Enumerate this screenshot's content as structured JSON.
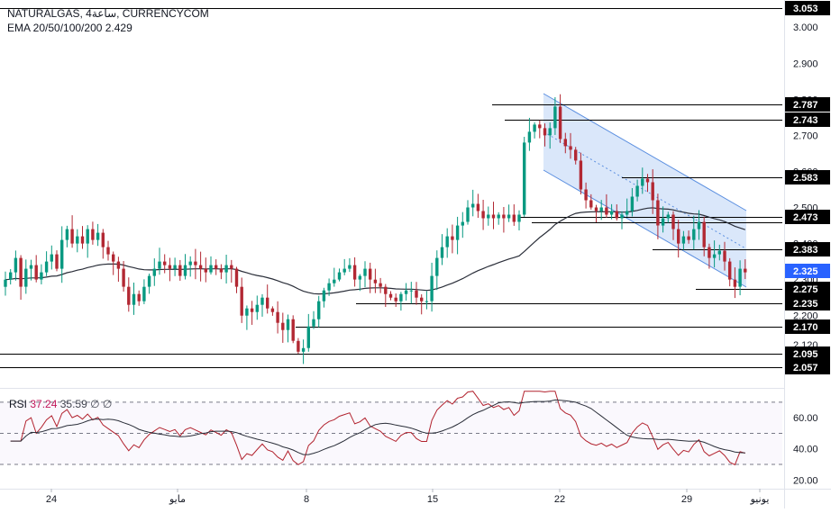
{
  "header": {
    "symbol_line": "NATURALGAS, 4ساعة, CURRENCYCOM",
    "ema_line": "EMA 20/50/100/200  2.429"
  },
  "rsi_header": {
    "label": "RSI",
    "value1": "37.24",
    "value2": "35.59",
    "value3": "∅ ∅"
  },
  "colors": {
    "up": "#089981",
    "down": "#f23645",
    "down_body": "#b22833",
    "ema": "#2a2e39",
    "channel_fill": "#bbd3f6",
    "channel_line": "#5b8fe0",
    "level_line": "#000000",
    "rsi_line": "#b2222e",
    "rsi_ma": "#2a2e39",
    "price_badge": "#2962ff",
    "label_bg": "#000000"
  },
  "price_axis": {
    "ticks": [
      "3.000",
      "2.900",
      "2.800",
      "2.700",
      "2.600",
      "2.500",
      "2.400",
      "2.300",
      "2.200",
      "2.120"
    ],
    "level_labels": [
      "3.053",
      "2.787",
      "2.743",
      "2.583",
      "2.473",
      "2.383",
      "2.275",
      "2.235",
      "2.170",
      "2.095",
      "2.057"
    ],
    "current_price": "2.325"
  },
  "rsi_axis": {
    "ticks": [
      "60.00",
      "40.00",
      "20.00"
    ]
  },
  "time_axis": {
    "labels": [
      "24",
      "مايو",
      "8",
      "15",
      "22",
      "29",
      "يونيو"
    ]
  },
  "chart_data": {
    "type": "candlestick",
    "title": "NATURALGAS, 4ساعة, CURRENCYCOM",
    "x_labels": [
      "24",
      "مايو",
      "8",
      "15",
      "22",
      "29",
      "يونيو"
    ],
    "price_range": [
      2.03,
      3.06
    ],
    "ema_label": "EMA 20/50/100/200",
    "ema_value": 2.429,
    "current_price": 2.325,
    "horizontal_levels": [
      3.053,
      2.787,
      2.743,
      2.583,
      2.473,
      2.383,
      2.275,
      2.235,
      2.17,
      2.095,
      2.057
    ],
    "closes": [
      2.3,
      2.32,
      2.36,
      2.28,
      2.33,
      2.34,
      2.3,
      2.32,
      2.35,
      2.37,
      2.33,
      2.41,
      2.44,
      2.4,
      2.42,
      2.4,
      2.44,
      2.41,
      2.43,
      2.39,
      2.37,
      2.35,
      2.33,
      2.28,
      2.23,
      2.26,
      2.24,
      2.28,
      2.31,
      2.33,
      2.35,
      2.34,
      2.33,
      2.34,
      2.31,
      2.34,
      2.35,
      2.34,
      2.33,
      2.32,
      2.34,
      2.33,
      2.32,
      2.34,
      2.33,
      2.28,
      2.2,
      2.22,
      2.21,
      2.23,
      2.25,
      2.22,
      2.21,
      2.18,
      2.16,
      2.19,
      2.13,
      2.1,
      2.11,
      2.17,
      2.19,
      2.24,
      2.27,
      2.29,
      2.3,
      2.32,
      2.33,
      2.34,
      2.3,
      2.31,
      2.33,
      2.3,
      2.29,
      2.28,
      2.26,
      2.25,
      2.24,
      2.26,
      2.27,
      2.27,
      2.25,
      2.24,
      2.24,
      2.31,
      2.36,
      2.39,
      2.42,
      2.41,
      2.45,
      2.46,
      2.5,
      2.51,
      2.49,
      2.47,
      2.48,
      2.47,
      2.48,
      2.47,
      2.48,
      2.46,
      2.48,
      2.68,
      2.71,
      2.73,
      2.72,
      2.7,
      2.72,
      2.78,
      2.69,
      2.67,
      2.66,
      2.63,
      2.55,
      2.52,
      2.5,
      2.49,
      2.5,
      2.48,
      2.49,
      2.47,
      2.48,
      2.49,
      2.53,
      2.56,
      2.58,
      2.57,
      2.52,
      2.45,
      2.47,
      2.48,
      2.44,
      2.4,
      2.42,
      2.41,
      2.44,
      2.46,
      2.39,
      2.36,
      2.37,
      2.38,
      2.35,
      2.3,
      2.28,
      2.33,
      2.32
    ],
    "rsi": {
      "label": "RSI",
      "value": 37.24,
      "ma_value": 35.59,
      "range": [
        15,
        78
      ],
      "levels": [
        70,
        50,
        30
      ]
    }
  }
}
